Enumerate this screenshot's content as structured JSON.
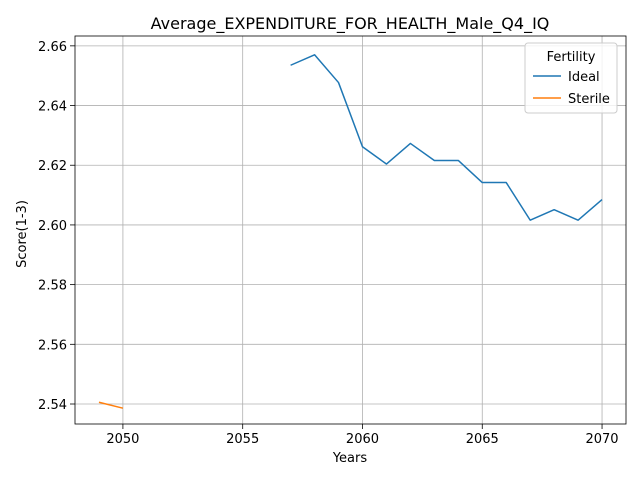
{
  "chart_data": {
    "type": "line",
    "title": "Average_EXPENDITURE_FOR_HEALTH_Male_Q4_IQ",
    "xlabel": "Years",
    "ylabel": "Score(1-3)",
    "xlim": [
      2048,
      2071
    ],
    "ylim": [
      2.5333,
      2.6633
    ],
    "x_ticks": [
      2050,
      2055,
      2060,
      2065,
      2070
    ],
    "y_ticks": [
      2.54,
      2.56,
      2.58,
      2.6,
      2.62,
      2.64,
      2.66
    ],
    "y_tick_labels": [
      "2.54",
      "2.56",
      "2.58",
      "2.60",
      "2.62",
      "2.64",
      "2.66"
    ],
    "grid": true,
    "legend": {
      "title": "Fertility",
      "placement": "top-right"
    },
    "series": [
      {
        "name": "Ideal",
        "color": "#1f77b4",
        "x": [
          2057,
          2058,
          2059,
          2060,
          2061,
          2062,
          2063,
          2064,
          2065,
          2066,
          2067,
          2068,
          2069,
          2070
        ],
        "values": [
          2.6535,
          2.657,
          2.6477,
          2.6262,
          2.6204,
          2.6273,
          2.6216,
          2.6216,
          2.6142,
          2.6142,
          2.6016,
          2.6051,
          2.6016,
          2.6085
        ]
      },
      {
        "name": "Sterile",
        "color": "#ff7f0e",
        "x": [
          2049,
          2050
        ],
        "values": [
          2.5406,
          2.5386
        ]
      }
    ]
  }
}
